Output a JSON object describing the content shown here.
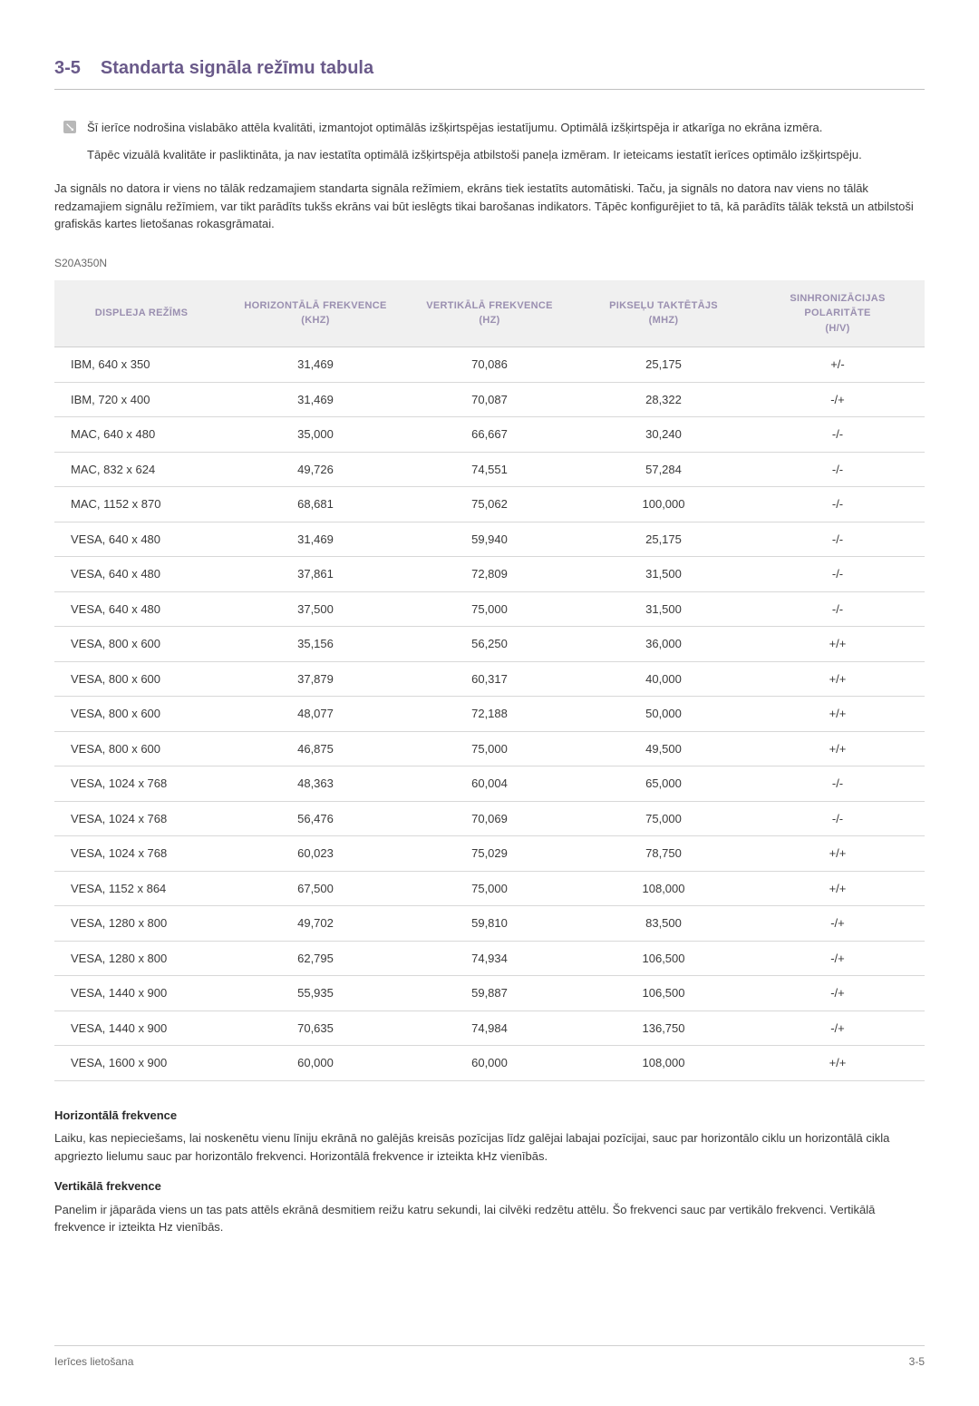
{
  "heading": {
    "num": "3-5",
    "title": "Standarta signāla režīmu tabula"
  },
  "callout": {
    "p1": "Šī ierīce nodrošina vislabāko attēla kvalitāti, izmantojot optimālās izšķirtspējas iestatījumu. Optimālā izšķirtspēja ir atkarīga no ekrāna izmēra.",
    "p2": "Tāpēc vizuālā kvalitāte ir pasliktināta, ja nav iestatīta optimālā izšķirtspēja atbilstoši paneļa izmēram. Ir ieteicams iestatīt ierīces optimālo izšķirtspēju."
  },
  "intro": "Ja signāls no datora ir viens no tālāk redzamajiem standarta signāla režīmiem, ekrāns tiek iestatīts automātiski. Taču, ja signāls no datora nav viens no tālāk redzamajiem signālu režīmiem, var tikt parādīts tukšs ekrāns vai būt ieslēgts tikai barošanas indikators. Tāpēc konfigurējiet to tā, kā parādīts tālāk tekstā un atbilstoši grafiskās kartes lietošanas rokasgrāmatai.",
  "model": "S20A350N",
  "table": {
    "columns": [
      "DISPLEJA REŽĪMS",
      "HORIZONTĀLĀ FREKVENCE (KHZ)",
      "VERTIKĀLĀ FREKVENCE (HZ)",
      "PIKSEĻU TAKTĒTĀJS (MHZ)",
      "SINHRONIZĀCIJAS POLARITĀTE (H/V)"
    ],
    "rows": [
      [
        "IBM, 640 x 350",
        "31,469",
        "70,086",
        "25,175",
        "+/-"
      ],
      [
        "IBM, 720 x 400",
        "31,469",
        "70,087",
        "28,322",
        "-/+"
      ],
      [
        "MAC, 640 x 480",
        "35,000",
        "66,667",
        "30,240",
        "-/-"
      ],
      [
        "MAC, 832 x 624",
        "49,726",
        "74,551",
        "57,284",
        "-/-"
      ],
      [
        "MAC, 1152 x 870",
        "68,681",
        "75,062",
        "100,000",
        "-/-"
      ],
      [
        "VESA, 640 x 480",
        "31,469",
        "59,940",
        "25,175",
        "-/-"
      ],
      [
        "VESA, 640 x 480",
        "37,861",
        "72,809",
        "31,500",
        "-/-"
      ],
      [
        "VESA, 640 x 480",
        "37,500",
        "75,000",
        "31,500",
        "-/-"
      ],
      [
        "VESA, 800 x 600",
        "35,156",
        "56,250",
        "36,000",
        "+/+"
      ],
      [
        "VESA, 800 x 600",
        "37,879",
        "60,317",
        "40,000",
        "+/+"
      ],
      [
        "VESA, 800 x 600",
        "48,077",
        "72,188",
        "50,000",
        "+/+"
      ],
      [
        "VESA, 800 x 600",
        "46,875",
        "75,000",
        "49,500",
        "+/+"
      ],
      [
        "VESA, 1024 x 768",
        "48,363",
        "60,004",
        "65,000",
        "-/-"
      ],
      [
        "VESA, 1024 x 768",
        "56,476",
        "70,069",
        "75,000",
        "-/-"
      ],
      [
        "VESA, 1024 x 768",
        "60,023",
        "75,029",
        "78,750",
        "+/+"
      ],
      [
        "VESA, 1152 x 864",
        "67,500",
        "75,000",
        "108,000",
        "+/+"
      ],
      [
        "VESA, 1280 x 800",
        "49,702",
        "59,810",
        "83,500",
        "-/+"
      ],
      [
        "VESA, 1280 x 800",
        "62,795",
        "74,934",
        "106,500",
        "-/+"
      ],
      [
        "VESA, 1440 x 900",
        "55,935",
        "59,887",
        "106,500",
        "-/+"
      ],
      [
        "VESA, 1440 x 900",
        "70,635",
        "74,984",
        "136,750",
        "-/+"
      ],
      [
        "VESA, 1600 x 900",
        "60,000",
        "60,000",
        "108,000",
        "+/+"
      ]
    ],
    "header_bg": "#f0f0f0",
    "header_color": "#9a8fb0",
    "row_border": "#d8d8d8",
    "col_align": [
      "left",
      "center",
      "center",
      "center",
      "center"
    ]
  },
  "defs": {
    "h1": "Horizontālā frekvence",
    "p1": "Laiku, kas nepieciešams, lai noskenētu vienu līniju ekrānā no galējās kreisās pozīcijas līdz galējai labajai pozīcijai, sauc par horizontālo ciklu un horizontālā cikla apgriezto lielumu sauc par horizontālo frekvenci. Horizontālā frekvence ir izteikta kHz vienībās.",
    "h2": "Vertikālā frekvence",
    "p2": "Panelim ir jāparāda viens un tas pats attēls ekrānā desmitiem reižu katru sekundi, lai cilvēki redzētu attēlu. Šo frekvenci sauc par vertikālo frekvenci. Vertikālā frekvence ir izteikta Hz vienībās."
  },
  "footer": {
    "left": "Ierīces lietošana",
    "right": "3-5"
  },
  "colors": {
    "accent": "#6a5a8a",
    "text": "#3a3a3a",
    "muted": "#6a6a6a",
    "rule": "#c0c0c0"
  }
}
